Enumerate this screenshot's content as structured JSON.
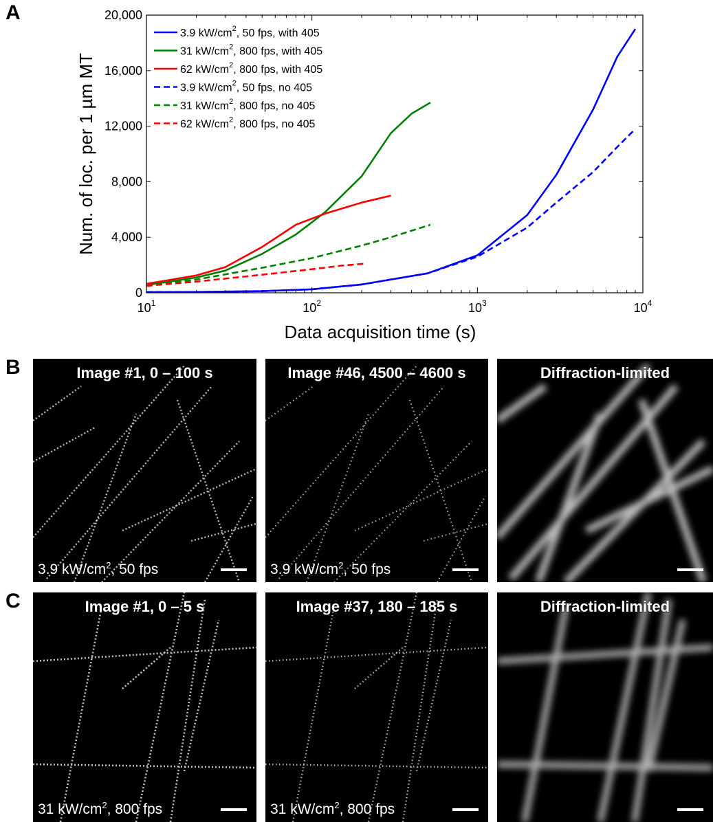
{
  "panel_labels": {
    "a": "A",
    "b": "B",
    "c": "C"
  },
  "chart_data": {
    "type": "line",
    "xlabel": "Data acquisition time (s)",
    "ylabel": "Num. of loc. per 1 µm MT",
    "xscale": "log",
    "xlim": [
      10,
      10000
    ],
    "ylim": [
      0,
      20000
    ],
    "x_tick_labels": [
      {
        "base": "10",
        "exp": "1"
      },
      {
        "base": "10",
        "exp": "2"
      },
      {
        "base": "10",
        "exp": "3"
      },
      {
        "base": "10",
        "exp": "4"
      }
    ],
    "y_ticks": [
      0,
      4000,
      8000,
      12000,
      16000,
      20000
    ],
    "y_tick_labels": [
      "0",
      "4,000",
      "8,000",
      "12,000",
      "16,000",
      "20,000"
    ],
    "legend_position": "top-left",
    "series": [
      {
        "name_pre": "3.9 kW/cm",
        "name_sup": "2",
        "name_post": ", 50 fps, with 405",
        "color": "#0000ff",
        "dashed": false,
        "x": [
          10,
          20,
          50,
          100,
          200,
          500,
          1000,
          2000,
          3000,
          5000,
          7000,
          9000
        ],
        "y": [
          50,
          60,
          120,
          250,
          600,
          1400,
          2700,
          5600,
          8500,
          13200,
          17000,
          19000
        ]
      },
      {
        "name_pre": "31 kW/cm",
        "name_sup": "2",
        "name_post": ", 800 fps, with 405",
        "color": "#008000",
        "dashed": false,
        "x": [
          10,
          20,
          30,
          50,
          80,
          120,
          200,
          300,
          400,
          520
        ],
        "y": [
          550,
          1100,
          1600,
          2800,
          4200,
          5800,
          8400,
          11500,
          12900,
          13700
        ]
      },
      {
        "name_pre": "62 kW/cm",
        "name_sup": "2",
        "name_post": ", 800 fps, with 405",
        "color": "#ff0000",
        "dashed": false,
        "x": [
          10,
          20,
          30,
          50,
          80,
          120,
          200,
          300
        ],
        "y": [
          650,
          1250,
          1850,
          3300,
          4900,
          5700,
          6500,
          7000
        ]
      },
      {
        "name_pre": "3.9 kW/cm",
        "name_sup": "2",
        "name_post": ", 50 fps, no 405",
        "color": "#0000ff",
        "dashed": true,
        "x": [
          10,
          20,
          50,
          100,
          200,
          500,
          1000,
          2000,
          3000,
          5000,
          7000,
          9000
        ],
        "y": [
          50,
          60,
          120,
          250,
          600,
          1400,
          2600,
          4700,
          6500,
          8700,
          10500,
          11800
        ]
      },
      {
        "name_pre": "31 kW/cm",
        "name_sup": "2",
        "name_post": ", 800 fps, no 405",
        "color": "#008000",
        "dashed": true,
        "x": [
          10,
          20,
          50,
          100,
          200,
          300,
          520
        ],
        "y": [
          500,
          950,
          1800,
          2500,
          3400,
          4000,
          4900
        ]
      },
      {
        "name_pre": "62 kW/cm",
        "name_sup": "2",
        "name_post": ", 800 fps, no 405",
        "color": "#ff0000",
        "dashed": true,
        "x": [
          10,
          20,
          50,
          100,
          150,
          210
        ],
        "y": [
          500,
          800,
          1300,
          1700,
          1950,
          2100
        ]
      }
    ]
  },
  "panels": {
    "b1": {
      "title": "Image #1, 0 – 100 s",
      "cond_pre": "3.9 kW/cm",
      "cond_sup": "2",
      "cond_post": ", 50 fps"
    },
    "b2": {
      "title": "Image #46, 4500 – 4600 s",
      "cond_pre": "3.9 kW/cm",
      "cond_sup": "2",
      "cond_post": ", 50 fps"
    },
    "b3": {
      "title": "Diffraction-limited"
    },
    "c1": {
      "title": "Image #1, 0 – 5 s",
      "cond_pre": "31 kW/cm",
      "cond_sup": "2",
      "cond_post": ", 800 fps"
    },
    "c2": {
      "title": "Image #37, 180 – 185 s",
      "cond_pre": "31 kW/cm",
      "cond_sup": "2",
      "cond_post": ", 800 fps"
    },
    "c3": {
      "title": "Diffraction-limited"
    }
  }
}
